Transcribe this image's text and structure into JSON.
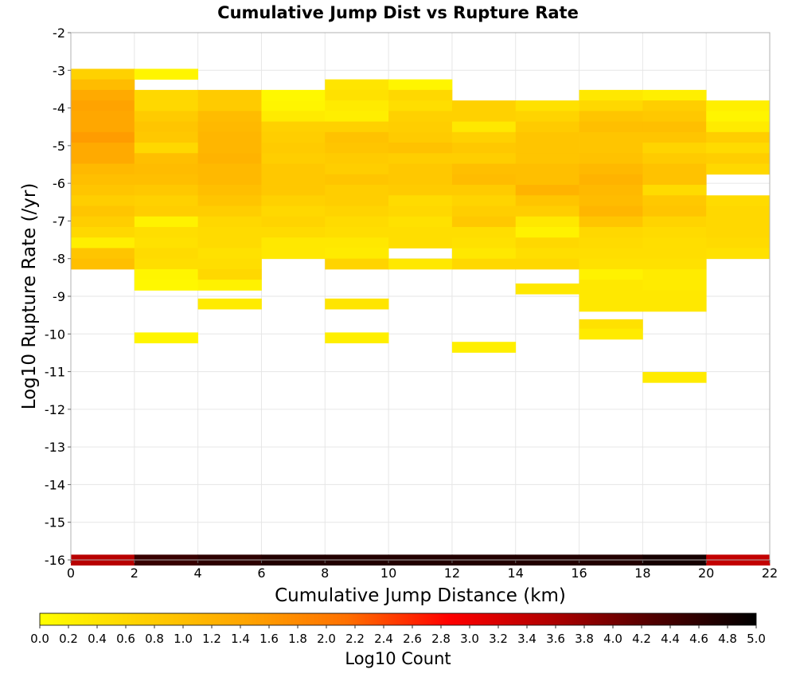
{
  "chart_data": {
    "type": "heatmap",
    "title": "Cumulative Jump Dist vs Rupture Rate",
    "xlabel": "Cumulative Jump Distance (km)",
    "ylabel": "Log10 Rupture Rate (/yr)",
    "colorbar_label": "Log10 Count",
    "xlim": [
      0,
      22
    ],
    "ylim": [
      -16,
      -2
    ],
    "x_ticks": [
      "0",
      "2",
      "4",
      "6",
      "8",
      "10",
      "12",
      "14",
      "16",
      "18",
      "20",
      "22"
    ],
    "y_ticks": [
      "-2",
      "-3",
      "-4",
      "-5",
      "-6",
      "-7",
      "-8",
      "-9",
      "-10",
      "-11",
      "-12",
      "-13",
      "-14",
      "-15",
      "-16"
    ],
    "colorbar_ticks": [
      "0.0",
      "0.2",
      "0.4",
      "0.6",
      "0.8",
      "1.0",
      "1.2",
      "1.4",
      "1.6",
      "1.8",
      "2.0",
      "2.2",
      "2.4",
      "2.6",
      "2.8",
      "3.0",
      "3.2",
      "3.4",
      "3.6",
      "3.8",
      "4.0",
      "4.2",
      "4.4",
      "4.6",
      "4.8",
      "5.0"
    ],
    "colorbar_range": [
      0,
      5
    ],
    "colormap": [
      "#ffff00",
      "#ffd000",
      "#ffa500",
      "#ff7000",
      "#ff0000",
      "#b00000",
      "#500000",
      "#000000"
    ],
    "grid": true,
    "x_bin_width": 2,
    "y_bin_height": 0.28,
    "note_cells": "[x_start_km, log10_rate_bin_center, log10_count]",
    "cells": [
      [
        0,
        -3.1,
        0.7
      ],
      [
        0,
        -3.38,
        1.05
      ],
      [
        0,
        -3.66,
        1.35
      ],
      [
        0,
        -3.94,
        1.45
      ],
      [
        0,
        -4.22,
        1.4
      ],
      [
        0,
        -4.5,
        1.4
      ],
      [
        0,
        -4.78,
        1.55
      ],
      [
        0,
        -5.06,
        1.35
      ],
      [
        0,
        -5.34,
        1.35
      ],
      [
        0,
        -5.62,
        1.1
      ],
      [
        0,
        -5.9,
        1.0
      ],
      [
        0,
        -6.18,
        0.9
      ],
      [
        0,
        -6.46,
        0.75
      ],
      [
        0,
        -6.74,
        0.9
      ],
      [
        0,
        -7.02,
        0.75
      ],
      [
        0,
        -7.3,
        0.6
      ],
      [
        0,
        -7.58,
        0.25
      ],
      [
        0,
        -7.86,
        0.9
      ],
      [
        0,
        -8.14,
        1.0
      ],
      [
        2,
        -3.1,
        0.15
      ],
      [
        2,
        -3.66,
        0.6
      ],
      [
        2,
        -3.94,
        0.6
      ],
      [
        2,
        -4.22,
        0.8
      ],
      [
        2,
        -4.5,
        0.9
      ],
      [
        2,
        -4.78,
        0.85
      ],
      [
        2,
        -5.06,
        0.6
      ],
      [
        2,
        -5.34,
        1.0
      ],
      [
        2,
        -5.62,
        1.05
      ],
      [
        2,
        -5.9,
        1.0
      ],
      [
        2,
        -6.18,
        0.85
      ],
      [
        2,
        -6.46,
        0.7
      ],
      [
        2,
        -6.74,
        0.75
      ],
      [
        2,
        -7.02,
        0.2
      ],
      [
        2,
        -7.3,
        0.5
      ],
      [
        2,
        -7.58,
        0.45
      ],
      [
        2,
        -7.86,
        0.55
      ],
      [
        2,
        -8.14,
        0.5
      ],
      [
        2,
        -8.42,
        0.15
      ],
      [
        2,
        -8.7,
        0.1
      ],
      [
        2,
        -10.1,
        0.15
      ],
      [
        4,
        -3.66,
        0.8
      ],
      [
        4,
        -3.94,
        0.8
      ],
      [
        4,
        -4.22,
        1.05
      ],
      [
        4,
        -4.5,
        1.1
      ],
      [
        4,
        -4.78,
        1.15
      ],
      [
        4,
        -5.06,
        1.15
      ],
      [
        4,
        -5.34,
        1.2
      ],
      [
        4,
        -5.62,
        1.1
      ],
      [
        4,
        -5.9,
        1.1
      ],
      [
        4,
        -6.18,
        1.0
      ],
      [
        4,
        -6.46,
        0.9
      ],
      [
        4,
        -6.74,
        0.75
      ],
      [
        4,
        -7.02,
        0.6
      ],
      [
        4,
        -7.3,
        0.55
      ],
      [
        4,
        -7.58,
        0.55
      ],
      [
        4,
        -7.86,
        0.45
      ],
      [
        4,
        -8.14,
        0.5
      ],
      [
        4,
        -8.42,
        0.6
      ],
      [
        4,
        -8.7,
        0.2
      ],
      [
        4,
        -9.2,
        0.3
      ],
      [
        6,
        -3.66,
        0.1
      ],
      [
        6,
        -3.94,
        0.15
      ],
      [
        6,
        -4.22,
        0.3
      ],
      [
        6,
        -4.5,
        0.7
      ],
      [
        6,
        -4.78,
        0.75
      ],
      [
        6,
        -5.06,
        0.8
      ],
      [
        6,
        -5.34,
        0.75
      ],
      [
        6,
        -5.62,
        0.85
      ],
      [
        6,
        -5.9,
        0.85
      ],
      [
        6,
        -6.18,
        0.85
      ],
      [
        6,
        -6.46,
        0.7
      ],
      [
        6,
        -6.74,
        0.6
      ],
      [
        6,
        -7.02,
        0.65
      ],
      [
        6,
        -7.3,
        0.55
      ],
      [
        6,
        -7.58,
        0.35
      ],
      [
        6,
        -7.86,
        0.35
      ],
      [
        8,
        -3.38,
        0.4
      ],
      [
        8,
        -3.66,
        0.45
      ],
      [
        8,
        -3.94,
        0.3
      ],
      [
        8,
        -4.22,
        0.25
      ],
      [
        8,
        -4.5,
        0.7
      ],
      [
        8,
        -4.78,
        0.95
      ],
      [
        8,
        -5.06,
        0.9
      ],
      [
        8,
        -5.34,
        0.8
      ],
      [
        8,
        -5.62,
        0.75
      ],
      [
        8,
        -5.9,
        0.9
      ],
      [
        8,
        -6.18,
        0.75
      ],
      [
        8,
        -6.46,
        0.75
      ],
      [
        8,
        -6.74,
        0.65
      ],
      [
        8,
        -7.02,
        0.55
      ],
      [
        8,
        -7.3,
        0.5
      ],
      [
        8,
        -7.58,
        0.35
      ],
      [
        8,
        -7.86,
        0.3
      ],
      [
        8,
        -8.14,
        0.65
      ],
      [
        8,
        -9.2,
        0.4
      ],
      [
        8,
        -10.1,
        0.25
      ],
      [
        10,
        -3.38,
        0.15
      ],
      [
        10,
        -3.66,
        0.6
      ],
      [
        10,
        -3.94,
        0.5
      ],
      [
        10,
        -4.22,
        0.7
      ],
      [
        10,
        -4.5,
        0.75
      ],
      [
        10,
        -4.78,
        0.8
      ],
      [
        10,
        -5.06,
        0.95
      ],
      [
        10,
        -5.34,
        0.75
      ],
      [
        10,
        -5.62,
        0.85
      ],
      [
        10,
        -5.9,
        0.85
      ],
      [
        10,
        -6.18,
        0.8
      ],
      [
        10,
        -6.46,
        0.55
      ],
      [
        10,
        -6.74,
        0.6
      ],
      [
        10,
        -7.02,
        0.45
      ],
      [
        10,
        -7.3,
        0.5
      ],
      [
        10,
        -7.58,
        0.5
      ],
      [
        10,
        -8.14,
        0.35
      ],
      [
        12,
        -3.94,
        0.7
      ],
      [
        12,
        -4.22,
        0.7
      ],
      [
        12,
        -4.5,
        0.35
      ],
      [
        12,
        -4.78,
        0.7
      ],
      [
        12,
        -5.06,
        0.85
      ],
      [
        12,
        -5.34,
        0.75
      ],
      [
        12,
        -5.62,
        1.0
      ],
      [
        12,
        -5.9,
        1.05
      ],
      [
        12,
        -6.18,
        0.8
      ],
      [
        12,
        -6.46,
        0.65
      ],
      [
        12,
        -6.74,
        0.75
      ],
      [
        12,
        -7.02,
        0.85
      ],
      [
        12,
        -7.3,
        0.5
      ],
      [
        12,
        -7.58,
        0.45
      ],
      [
        12,
        -7.86,
        0.35
      ],
      [
        12,
        -8.14,
        0.6
      ],
      [
        12,
        -10.35,
        0.25
      ],
      [
        14,
        -3.94,
        0.45
      ],
      [
        14,
        -4.22,
        0.65
      ],
      [
        14,
        -4.5,
        0.8
      ],
      [
        14,
        -4.78,
        0.9
      ],
      [
        14,
        -5.06,
        0.9
      ],
      [
        14,
        -5.34,
        0.9
      ],
      [
        14,
        -5.62,
        1.0
      ],
      [
        14,
        -5.9,
        1.0
      ],
      [
        14,
        -6.18,
        1.2
      ],
      [
        14,
        -6.46,
        0.9
      ],
      [
        14,
        -6.74,
        0.75
      ],
      [
        14,
        -7.02,
        0.35
      ],
      [
        14,
        -7.3,
        0.2
      ],
      [
        14,
        -7.58,
        0.6
      ],
      [
        14,
        -7.86,
        0.5
      ],
      [
        14,
        -8.14,
        0.6
      ],
      [
        14,
        -8.8,
        0.35
      ],
      [
        16,
        -3.66,
        0.35
      ],
      [
        16,
        -3.94,
        0.6
      ],
      [
        16,
        -4.22,
        0.9
      ],
      [
        16,
        -4.5,
        1.0
      ],
      [
        16,
        -4.78,
        0.9
      ],
      [
        16,
        -5.06,
        0.9
      ],
      [
        16,
        -5.34,
        0.95
      ],
      [
        16,
        -5.62,
        1.1
      ],
      [
        16,
        -5.9,
        1.2
      ],
      [
        16,
        -6.18,
        1.1
      ],
      [
        16,
        -6.46,
        1.05
      ],
      [
        16,
        -6.74,
        1.15
      ],
      [
        16,
        -7.02,
        0.9
      ],
      [
        16,
        -7.3,
        0.6
      ],
      [
        16,
        -7.58,
        0.55
      ],
      [
        16,
        -7.86,
        0.5
      ],
      [
        16,
        -8.14,
        0.45
      ],
      [
        16,
        -8.42,
        0.2
      ],
      [
        16,
        -8.7,
        0.35
      ],
      [
        16,
        -8.98,
        0.35
      ],
      [
        16,
        -9.26,
        0.35
      ],
      [
        16,
        -9.75,
        0.45
      ],
      [
        16,
        -10.0,
        0.3
      ],
      [
        18,
        -3.66,
        0.25
      ],
      [
        18,
        -3.94,
        0.75
      ],
      [
        18,
        -4.22,
        0.85
      ],
      [
        18,
        -4.5,
        1.0
      ],
      [
        18,
        -4.78,
        0.9
      ],
      [
        18,
        -5.06,
        0.65
      ],
      [
        18,
        -5.34,
        0.8
      ],
      [
        18,
        -5.62,
        0.95
      ],
      [
        18,
        -5.9,
        0.95
      ],
      [
        18,
        -6.18,
        0.55
      ],
      [
        18,
        -6.46,
        0.85
      ],
      [
        18,
        -6.74,
        0.9
      ],
      [
        18,
        -7.02,
        0.65
      ],
      [
        18,
        -7.3,
        0.55
      ],
      [
        18,
        -7.58,
        0.5
      ],
      [
        18,
        -7.86,
        0.5
      ],
      [
        18,
        -8.14,
        0.45
      ],
      [
        18,
        -8.42,
        0.3
      ],
      [
        18,
        -8.7,
        0.3
      ],
      [
        18,
        -8.98,
        0.35
      ],
      [
        18,
        -9.26,
        0.35
      ],
      [
        18,
        -11.15,
        0.3
      ],
      [
        20,
        -3.94,
        0.25
      ],
      [
        20,
        -4.22,
        0.15
      ],
      [
        20,
        -4.5,
        0.3
      ],
      [
        20,
        -4.78,
        0.75
      ],
      [
        20,
        -5.06,
        0.55
      ],
      [
        20,
        -5.34,
        0.75
      ],
      [
        20,
        -5.62,
        0.6
      ],
      [
        20,
        -6.46,
        0.55
      ],
      [
        20,
        -6.74,
        0.6
      ],
      [
        20,
        -7.02,
        0.6
      ],
      [
        20,
        -7.3,
        0.6
      ],
      [
        20,
        -7.58,
        0.55
      ],
      [
        20,
        -7.86,
        0.45
      ],
      [
        0,
        -16,
        3.5
      ],
      [
        2,
        -16,
        4.5
      ],
      [
        4,
        -16,
        4.6
      ],
      [
        6,
        -16,
        4.7
      ],
      [
        8,
        -16,
        4.7
      ],
      [
        10,
        -16,
        4.7
      ],
      [
        12,
        -16,
        4.7
      ],
      [
        14,
        -16,
        4.7
      ],
      [
        16,
        -16,
        4.7
      ],
      [
        18,
        -16,
        4.8
      ],
      [
        20,
        -16,
        3.4
      ]
    ]
  }
}
